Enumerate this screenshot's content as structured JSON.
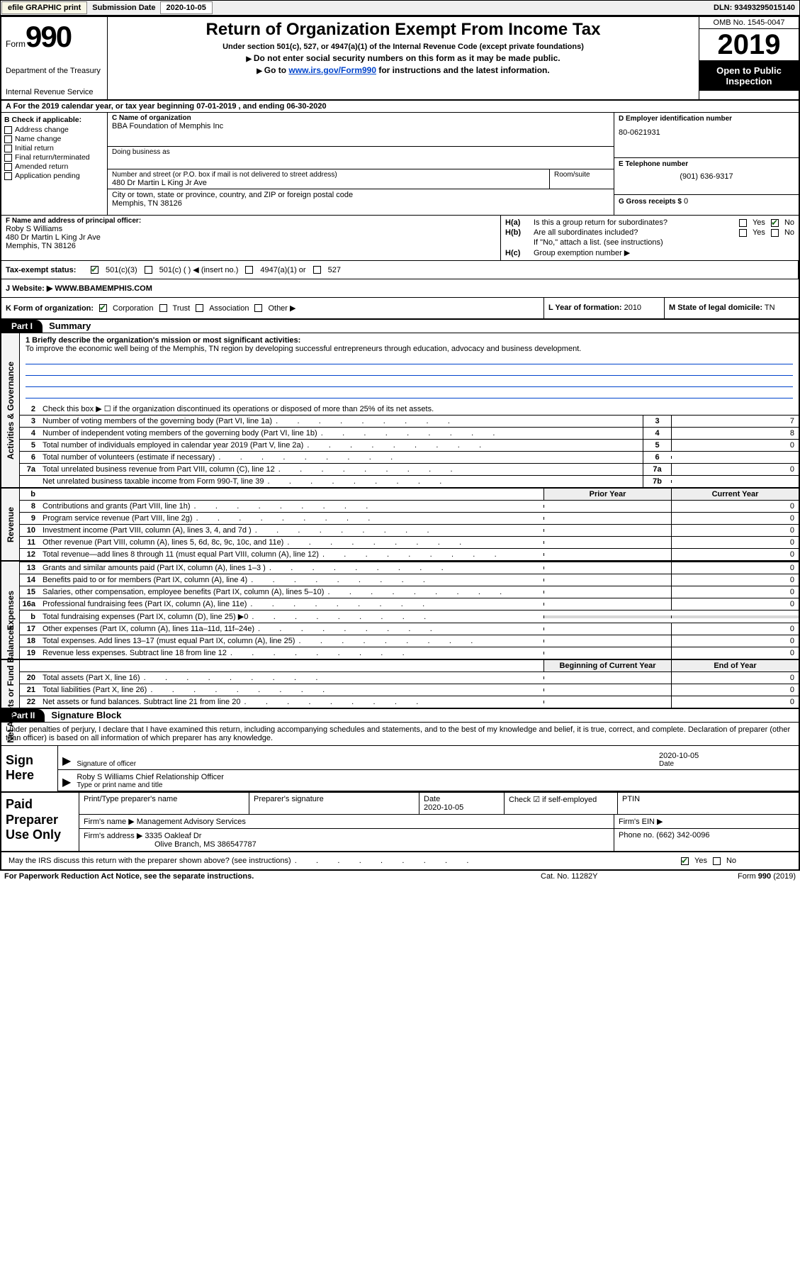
{
  "topbar": {
    "efile": "efile GRAPHIC print",
    "sub_label": "Submission Date",
    "sub_date": "2020-10-05",
    "dln": "DLN: 93493295015140"
  },
  "header": {
    "form_word": "Form",
    "form_num": "990",
    "dept": "Department of the Treasury",
    "irs": "Internal Revenue Service",
    "title": "Return of Organization Exempt From Income Tax",
    "subtitle": "Under section 501(c), 527, or 4947(a)(1) of the Internal Revenue Code (except private foundations)",
    "instr1": "Do not enter social security numbers on this form as it may be made public.",
    "instr2_pre": "Go to ",
    "instr2_link": "www.irs.gov/Form990",
    "instr2_post": " for instructions and the latest information.",
    "omb": "OMB No. 1545-0047",
    "year": "2019",
    "otp1": "Open to Public",
    "otp2": "Inspection"
  },
  "rowA": "For the 2019 calendar year, or tax year beginning 07-01-2019     , and ending 06-30-2020",
  "secB": {
    "hdr": "B Check if applicable:",
    "items": [
      "Address change",
      "Name change",
      "Initial return",
      "Final return/terminated",
      "Amended return",
      "Application pending"
    ]
  },
  "secC": {
    "name_lbl": "C Name of organization",
    "name": "BBA Foundation of Memphis Inc",
    "dba_lbl": "Doing business as",
    "street_lbl": "Number and street (or P.O. box if mail is not delivered to street address)",
    "room_lbl": "Room/suite",
    "street": "480 Dr Martin L King Jr Ave",
    "city_lbl": "City or town, state or province, country, and ZIP or foreign postal code",
    "city": "Memphis, TN  38126"
  },
  "secD": {
    "ein_lbl": "D Employer identification number",
    "ein": "80-0621931",
    "tel_lbl": "E Telephone number",
    "tel": "(901) 636-9317",
    "gross_lbl": "G Gross receipts $",
    "gross": "0"
  },
  "secF": {
    "lbl": "F  Name and address of principal officer:",
    "name": "Roby S Williams",
    "addr1": "480 Dr Martin L King Jr Ave",
    "addr2": "Memphis, TN  38126"
  },
  "secH": {
    "a_lbl": "H(a)",
    "a_txt": "Is this a group return for subordinates?",
    "b_lbl": "H(b)",
    "b_txt": "Are all subordinates included?",
    "note": "If \"No,\" attach a list. (see instructions)",
    "c_lbl": "H(c)",
    "c_txt": "Group exemption number ▶",
    "yes": "Yes",
    "no": "No"
  },
  "secI": {
    "lbl": "Tax-exempt status:",
    "o1": "501(c)(3)",
    "o2": "501(c) (   ) ◀ (insert no.)",
    "o3": "4947(a)(1) or",
    "o4": "527"
  },
  "secJ": {
    "lbl": "J   Website: ▶",
    "val": "WWW.BBAMEMPHIS.COM"
  },
  "secK": {
    "lbl": "K Form of organization:",
    "o1": "Corporation",
    "o2": "Trust",
    "o3": "Association",
    "o4": "Other ▶"
  },
  "secL": {
    "lbl": "L Year of formation:",
    "val": "2010"
  },
  "secM": {
    "lbl": "M State of legal domicile:",
    "val": "TN"
  },
  "part1": {
    "bar": "Part I",
    "title": "Summary",
    "l1_lbl": "1  Briefly describe the organization's mission or most significant activities:",
    "l1_txt": "To improve the economic well being of the Memphis, TN region by developing successful entrepreneurs through education, advocacy and business development.",
    "l2": "Check this box ▶ ☐  if the organization discontinued its operations or disposed of more than 25% of its net assets.",
    "activities_label": "Activities & Governance",
    "revenue_label": "Revenue",
    "expenses_label": "Expenses",
    "netassets_label": "Net Assets or Fund Balances",
    "lines_act": [
      {
        "n": "3",
        "d": "Number of voting members of the governing body (Part VI, line 1a)",
        "box": "3",
        "v": "7"
      },
      {
        "n": "4",
        "d": "Number of independent voting members of the governing body (Part VI, line 1b)",
        "box": "4",
        "v": "8"
      },
      {
        "n": "5",
        "d": "Total number of individuals employed in calendar year 2019 (Part V, line 2a)",
        "box": "5",
        "v": "0"
      },
      {
        "n": "6",
        "d": "Total number of volunteers (estimate if necessary)",
        "box": "6",
        "v": ""
      },
      {
        "n": "7a",
        "d": "Total unrelated business revenue from Part VIII, column (C), line 12",
        "box": "7a",
        "v": "0"
      },
      {
        "n": "",
        "d": "Net unrelated business taxable income from Form 990-T, line 39",
        "box": "7b",
        "v": ""
      }
    ],
    "prior_hdr": "Prior Year",
    "curr_hdr": "Current Year",
    "lines_rev": [
      {
        "n": "8",
        "d": "Contributions and grants (Part VIII, line 1h)",
        "p": "",
        "c": "0"
      },
      {
        "n": "9",
        "d": "Program service revenue (Part VIII, line 2g)",
        "p": "",
        "c": "0"
      },
      {
        "n": "10",
        "d": "Investment income (Part VIII, column (A), lines 3, 4, and 7d )",
        "p": "",
        "c": "0"
      },
      {
        "n": "11",
        "d": "Other revenue (Part VIII, column (A), lines 5, 6d, 8c, 9c, 10c, and 11e)",
        "p": "",
        "c": "0"
      },
      {
        "n": "12",
        "d": "Total revenue—add lines 8 through 11 (must equal Part VIII, column (A), line 12)",
        "p": "",
        "c": "0"
      }
    ],
    "lines_exp": [
      {
        "n": "13",
        "d": "Grants and similar amounts paid (Part IX, column (A), lines 1–3 )",
        "p": "",
        "c": "0"
      },
      {
        "n": "14",
        "d": "Benefits paid to or for members (Part IX, column (A), line 4)",
        "p": "",
        "c": "0"
      },
      {
        "n": "15",
        "d": "Salaries, other compensation, employee benefits (Part IX, column (A), lines 5–10)",
        "p": "",
        "c": "0"
      },
      {
        "n": "16a",
        "d": "Professional fundraising fees (Part IX, column (A), line 11e)",
        "p": "",
        "c": "0"
      },
      {
        "n": "b",
        "d": "Total fundraising expenses (Part IX, column (D), line 25) ▶0",
        "p": "grey",
        "c": "grey"
      },
      {
        "n": "17",
        "d": "Other expenses (Part IX, column (A), lines 11a–11d, 11f–24e)",
        "p": "",
        "c": "0"
      },
      {
        "n": "18",
        "d": "Total expenses. Add lines 13–17 (must equal Part IX, column (A), line 25)",
        "p": "",
        "c": "0"
      },
      {
        "n": "19",
        "d": "Revenue less expenses. Subtract line 18 from line 12",
        "p": "",
        "c": "0"
      }
    ],
    "beg_hdr": "Beginning of Current Year",
    "end_hdr": "End of Year",
    "lines_na": [
      {
        "n": "20",
        "d": "Total assets (Part X, line 16)",
        "p": "",
        "c": "0"
      },
      {
        "n": "21",
        "d": "Total liabilities (Part X, line 26)",
        "p": "",
        "c": "0"
      },
      {
        "n": "22",
        "d": "Net assets or fund balances. Subtract line 21 from line 20",
        "p": "",
        "c": "0"
      }
    ]
  },
  "part2": {
    "bar": "Part II",
    "title": "Signature Block",
    "decl": "Under penalties of perjury, I declare that I have examined this return, including accompanying schedules and statements, and to the best of my knowledge and belief, it is true, correct, and complete. Declaration of preparer (other than officer) is based on all information of which preparer has any knowledge.",
    "sign_here": "Sign Here",
    "sig_lbl": "Signature of officer",
    "date_lbl": "Date",
    "sig_date": "2020-10-05",
    "officer": "Roby S Williams  Chief Relationship Officer",
    "type_lbl": "Type or print name and title",
    "paid_lbl": "Paid Preparer Use Only",
    "p_name_lbl": "Print/Type preparer's name",
    "p_sig_lbl": "Preparer's signature",
    "p_date_lbl": "Date",
    "p_date": "2020-10-05",
    "p_check": "Check ☑ if self-employed",
    "ptin_lbl": "PTIN",
    "firm_name_lbl": "Firm's name     ▶",
    "firm_name": "Management Advisory Services",
    "firm_ein_lbl": "Firm's EIN ▶",
    "firm_addr_lbl": "Firm's address ▶",
    "firm_addr1": "3335 Oakleaf Dr",
    "firm_addr2": "Olive Branch, MS  386547787",
    "phone_lbl": "Phone no.",
    "phone": "(662) 342-0096",
    "discuss": "May the IRS discuss this return with the preparer shown above? (see instructions)"
  },
  "footer": {
    "l": "For Paperwork Reduction Act Notice, see the separate instructions.",
    "m": "Cat. No. 11282Y",
    "r": "Form 990 (2019)"
  }
}
